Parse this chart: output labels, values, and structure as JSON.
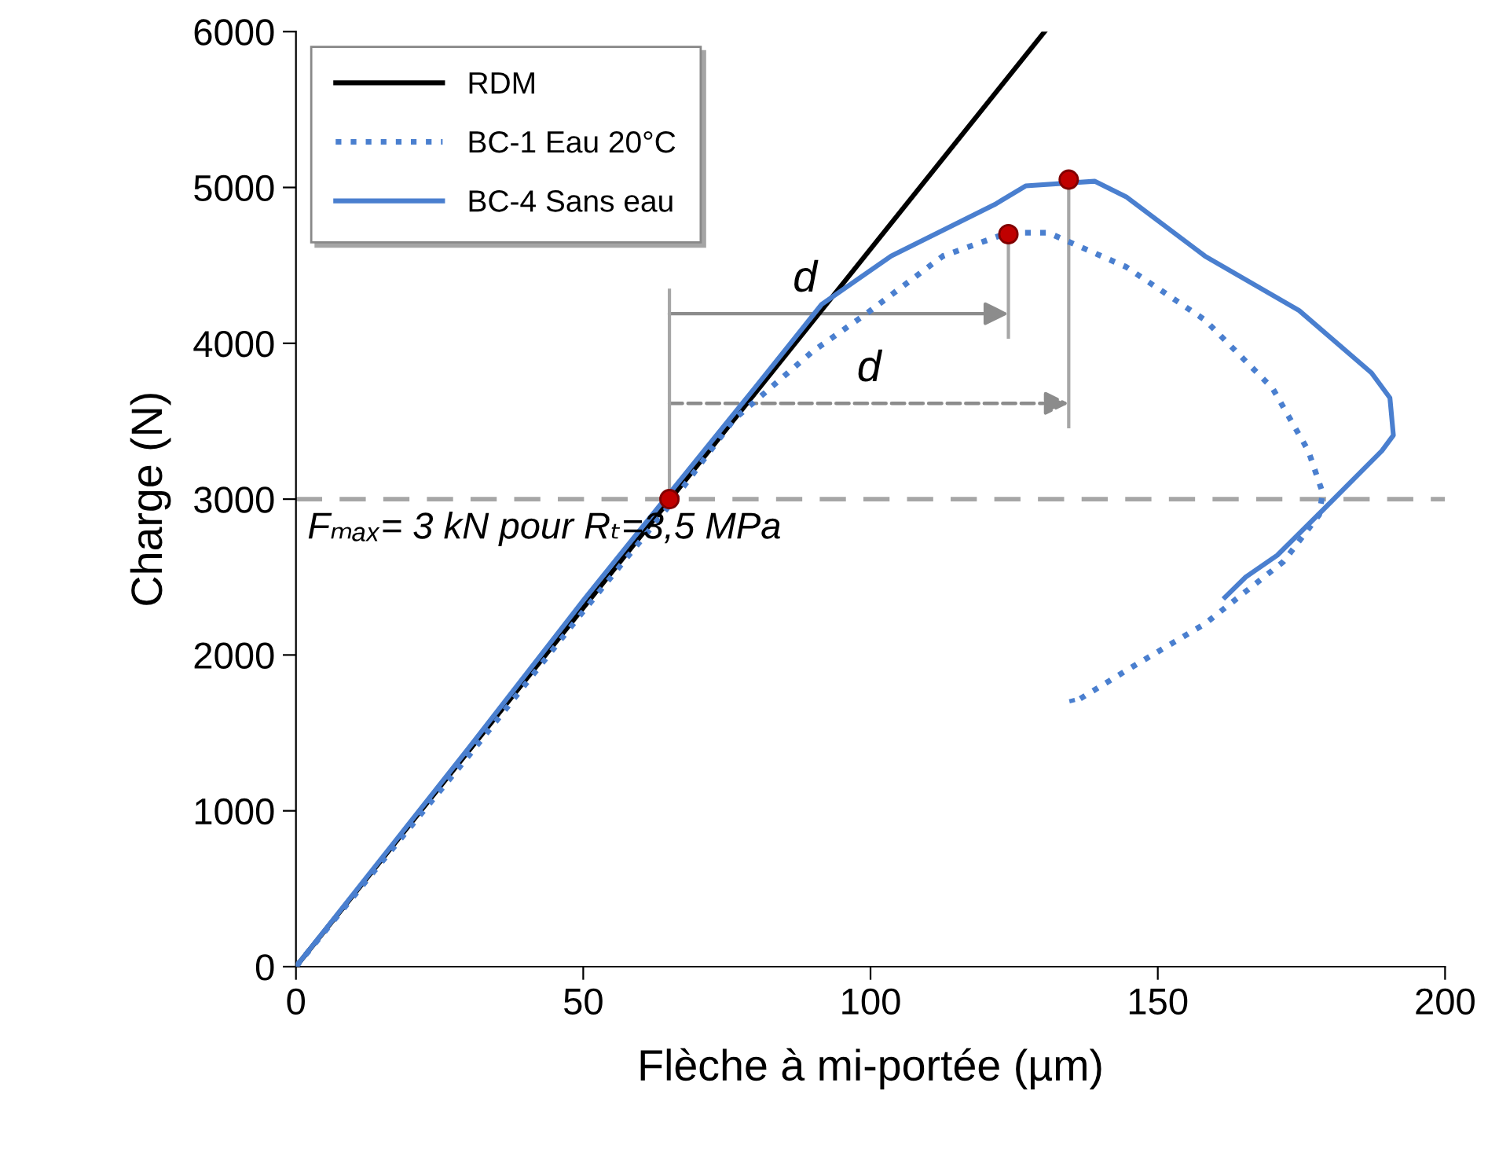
{
  "chart_data": {
    "type": "line",
    "xlabel": "Flèche à mi-portée (µm)",
    "ylabel": "Charge (N)",
    "xlim": [
      0,
      200
    ],
    "xticks": [
      0,
      50,
      100,
      150,
      200
    ],
    "ylim": [
      0,
      6000
    ],
    "yticks": [
      0,
      1000,
      2000,
      3000,
      4000,
      5000,
      6000
    ],
    "grid": false,
    "legend": "top left",
    "series": [
      {
        "name": "RDM",
        "color": "#000000",
        "line_style": "solid",
        "x": [
          0,
          130.3
        ],
        "values": [
          0,
          6000
        ]
      },
      {
        "name": "BC-1 Eau 20°C",
        "color": "#4a7fcf",
        "line_style": "dotted",
        "x": [
          0,
          30,
          50,
          65,
          76.2,
          90,
          98.9,
          112.6,
          124,
          130.9,
          144.5,
          158.2,
          170,
          176.2,
          178.7,
          178.1,
          171.9,
          158.2,
          144.5,
          135.2,
          135
        ],
        "values": [
          0,
          1350,
          2280,
          2960,
          3510,
          3950,
          4180,
          4560,
          4710,
          4710,
          4490,
          4150,
          3710,
          3310,
          3040,
          2900,
          2600,
          2200,
          1900,
          1690,
          1720
        ]
      },
      {
        "name": "BC-4 Sans eau",
        "color": "#4a7fcf",
        "line_style": "solid",
        "x": [
          0,
          30,
          50,
          64.2,
          80,
          91.5,
          103.6,
          121.6,
          127,
          139,
          144.5,
          158.2,
          174.6,
          187.2,
          190.4,
          191,
          189,
          179,
          170.8,
          165.3,
          161.7
        ],
        "values": [
          0,
          1400,
          2350,
          3000,
          3720,
          4250,
          4560,
          4890,
          5010,
          5040,
          4940,
          4560,
          4210,
          3810,
          3650,
          3410,
          3310,
          2940,
          2640,
          2500,
          2370
        ]
      },
      {
        "type": "scatter",
        "color": "#c00000",
        "marker": "circle",
        "x": [
          65,
          124,
          134.5
        ],
        "values": [
          3000,
          4700,
          5050
        ]
      }
    ],
    "ref_lines": [
      {
        "axis": "y",
        "value": 3000,
        "color": "#a6a6a6",
        "line_style": "dashed"
      }
    ],
    "annotations": [
      "d",
      "d",
      "Fₘₐₓ= 3 kN pour Rₜ=3,5 MPa"
    ]
  }
}
